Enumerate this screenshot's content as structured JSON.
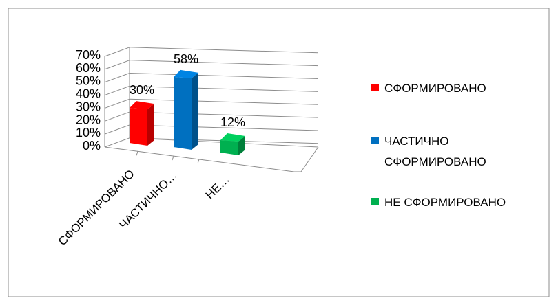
{
  "chart_data": {
    "type": "bar",
    "categories": [
      "СФОРМИРОВАНО",
      "ЧАСТИЧНО…",
      "НЕ…"
    ],
    "series": [
      {
        "values": [
          30,
          58,
          12
        ]
      }
    ],
    "data_labels": [
      "30%",
      "58%",
      "12%"
    ],
    "ylim": [
      0,
      70
    ],
    "y_ticks": [
      "0%",
      "10%",
      "20%",
      "30%",
      "40%",
      "50%",
      "60%",
      "70%"
    ],
    "bar_colors": [
      "#ff0000",
      "#0070c0",
      "#00b050"
    ],
    "grid": true,
    "style": "3d-clustered-column",
    "legend": {
      "position": "right",
      "entries": [
        {
          "lines": [
            "СФОРМИРОВАНО"
          ],
          "color": "#ff0000"
        },
        {
          "lines": [
            "ЧАСТИЧНО",
            "СФОРМИРОВАНО"
          ],
          "color": "#0070c0"
        },
        {
          "lines": [
            "НЕ СФОРМИРОВАНО"
          ],
          "color": "#00b050"
        }
      ]
    }
  }
}
